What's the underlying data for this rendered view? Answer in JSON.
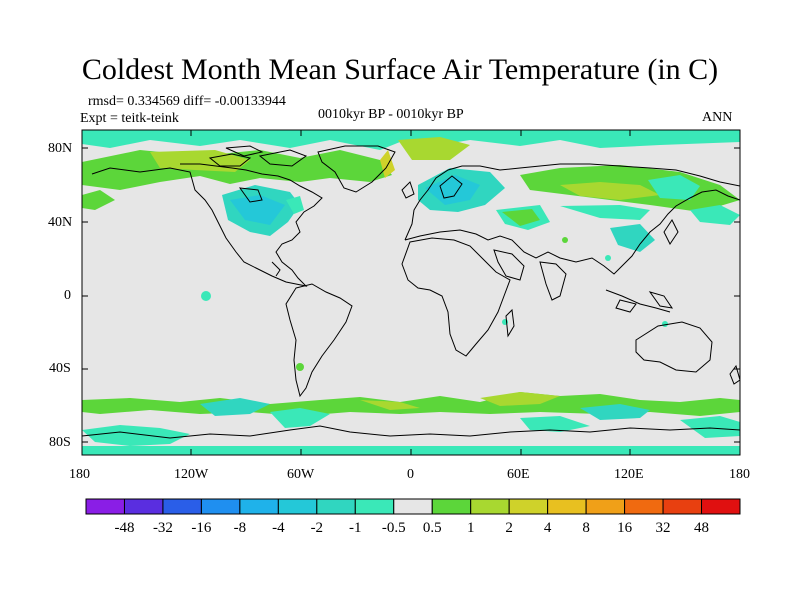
{
  "title": "Coldest Month Mean Surface Air Temperature (in C)",
  "stats": {
    "rmsd_line": "rmsd= 0.334569 diff= -0.00133944",
    "expt_line": "Expt = teitk-teink",
    "period": "0010kyr BP - 0010kyr BP",
    "season": "ANN"
  },
  "map": {
    "y_axis_labels": [
      "80N",
      "40N",
      "0",
      "40S",
      "80S"
    ],
    "x_axis_labels": [
      "180",
      "120W",
      "60W",
      "0",
      "60E",
      "120E",
      "180"
    ]
  },
  "colorbar": {
    "labels": [
      "-48",
      "-32",
      "-16",
      "-8",
      "-4",
      "-2",
      "-1",
      "-0.5",
      "0.5",
      "1",
      "2",
      "4",
      "8",
      "16",
      "32",
      "48"
    ],
    "colors": [
      "#8a1ee6",
      "#5a2ee0",
      "#2a5ee8",
      "#1f8ff0",
      "#1fb2ea",
      "#24c8d8",
      "#30d6c0",
      "#3ae8b8",
      "#e6e6e6",
      "#5cd63a",
      "#a8d830",
      "#cfd22a",
      "#e8c020",
      "#f0a018",
      "#f06a10",
      "#e84010",
      "#e01010"
    ]
  },
  "palette": {
    "land_background": "#e6e6e6",
    "coastline": "#000000"
  }
}
